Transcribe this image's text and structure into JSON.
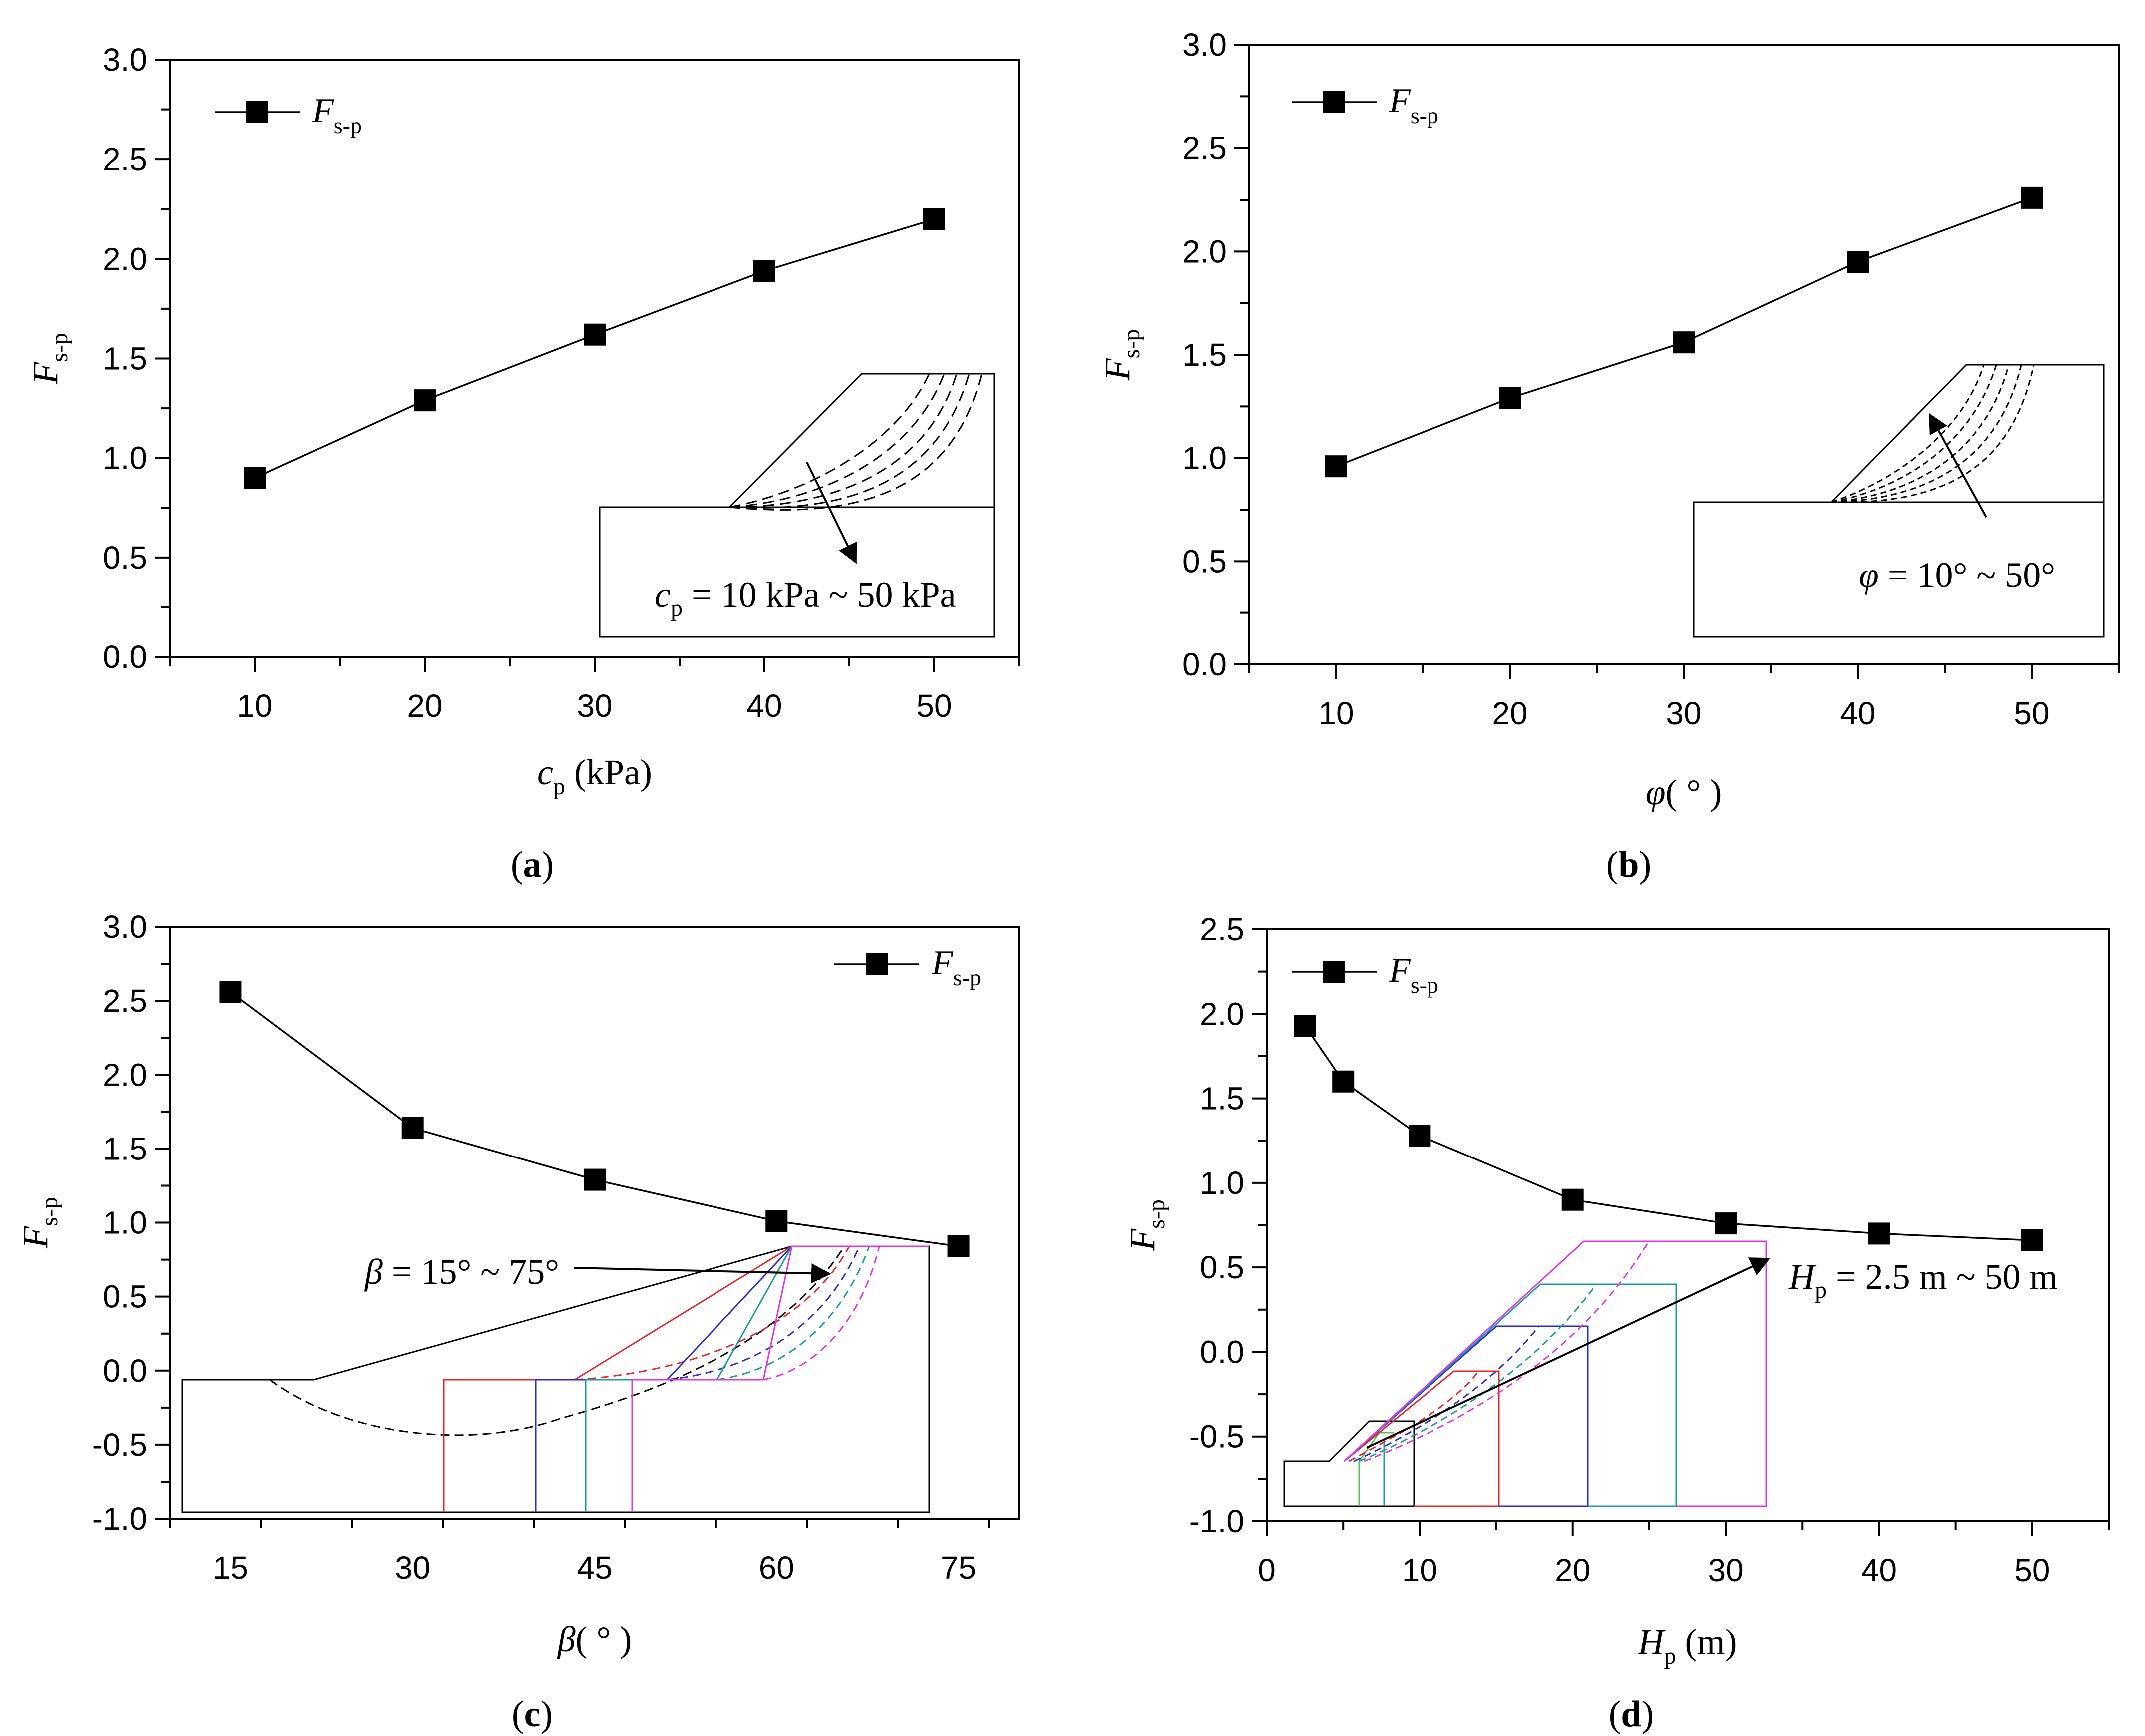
{
  "figure": {
    "panels": [
      {
        "id": "a",
        "caption": "a",
        "chart_data": {
          "type": "line",
          "title": "",
          "x": [
            10,
            20,
            30,
            40,
            50
          ],
          "series": [
            {
              "name": "F_s-p",
              "values": [
                0.9,
                1.29,
                1.62,
                1.94,
                2.2
              ]
            }
          ],
          "xlim": [
            5,
            55
          ],
          "ylim": [
            0.0,
            3.0
          ],
          "xticks": [
            10,
            20,
            30,
            40,
            50
          ],
          "yticks": [
            0.0,
            0.5,
            1.0,
            1.5,
            2.0,
            2.5,
            3.0
          ],
          "xlabel": {
            "main": "c",
            "sub": "p",
            "suffix": " (kPa)"
          },
          "ylabel": {
            "main": "F",
            "sub": "s-p"
          },
          "legend": {
            "main": "F",
            "sub": "s-p",
            "placement": "top-left"
          },
          "grid": false
        },
        "inset": {
          "label_main": "c",
          "label_sub": "p",
          "label_rest": " = 10 kPa ~ 50 kPa"
        }
      },
      {
        "id": "b",
        "caption": "b",
        "chart_data": {
          "type": "line",
          "title": "",
          "x": [
            10,
            20,
            30,
            40,
            50
          ],
          "series": [
            {
              "name": "F_s-p",
              "values": [
                0.96,
                1.29,
                1.56,
                1.95,
                2.26
              ]
            }
          ],
          "xlim": [
            5,
            55
          ],
          "ylim": [
            0.0,
            3.0
          ],
          "xticks": [
            10,
            20,
            30,
            40,
            50
          ],
          "yticks": [
            0.0,
            0.5,
            1.0,
            1.5,
            2.0,
            2.5,
            3.0
          ],
          "xlabel": {
            "main": "φ",
            "sub": "",
            "suffix": "( ° )"
          },
          "ylabel": {
            "main": "F",
            "sub": "s-p"
          },
          "legend": {
            "main": "F",
            "sub": "s-p",
            "placement": "top-left"
          },
          "grid": false
        },
        "inset": {
          "label_main": "φ",
          "label_rest": " = 10° ~ 50°"
        }
      },
      {
        "id": "c",
        "caption": "c",
        "chart_data": {
          "type": "line",
          "title": "",
          "x": [
            15,
            30,
            45,
            60,
            75
          ],
          "series": [
            {
              "name": "F_s-p",
              "values": [
                2.56,
                1.64,
                1.29,
                1.01,
                0.84
              ]
            }
          ],
          "xlim": [
            10,
            80
          ],
          "ylim": [
            -1.0,
            3.0
          ],
          "xticks": [
            15,
            30,
            45,
            60,
            75
          ],
          "yticks": [
            -1.0,
            -0.5,
            0.0,
            0.5,
            1.0,
            1.5,
            2.0,
            2.5,
            3.0
          ],
          "xlabel": {
            "main": "β",
            "sub": "",
            "suffix": "( ° )"
          },
          "ylabel": {
            "main": "F",
            "sub": "s-p"
          },
          "legend": {
            "main": "F",
            "sub": "s-p",
            "placement": "top-right"
          },
          "grid": false
        },
        "inset": {
          "label_main": "β",
          "label_rest": " = 15° ~ 75°"
        }
      },
      {
        "id": "d",
        "caption": "d",
        "chart_data": {
          "type": "line",
          "title": "",
          "x": [
            2.5,
            5,
            10,
            20,
            30,
            40,
            50
          ],
          "series": [
            {
              "name": "F_s-p",
              "values": [
                1.93,
                1.6,
                1.28,
                0.9,
                0.76,
                0.7,
                0.66
              ]
            }
          ],
          "xlim": [
            0,
            55
          ],
          "ylim": [
            -1.0,
            2.5
          ],
          "xticks": [
            0,
            10,
            20,
            30,
            40,
            50
          ],
          "yticks": [
            -1.0,
            -0.5,
            0.0,
            0.5,
            1.0,
            1.5,
            2.0,
            2.5
          ],
          "xlabel": {
            "main": "H",
            "sub": "p",
            "suffix": " (m)"
          },
          "ylabel": {
            "main": "F",
            "sub": "s-p"
          },
          "legend": {
            "main": "F",
            "sub": "s-p",
            "placement": "top-left"
          },
          "grid": false
        },
        "inset": {
          "label_main": "H",
          "label_sub": "p",
          "label_rest": " = 2.5 m ~ 50 m"
        }
      }
    ]
  }
}
